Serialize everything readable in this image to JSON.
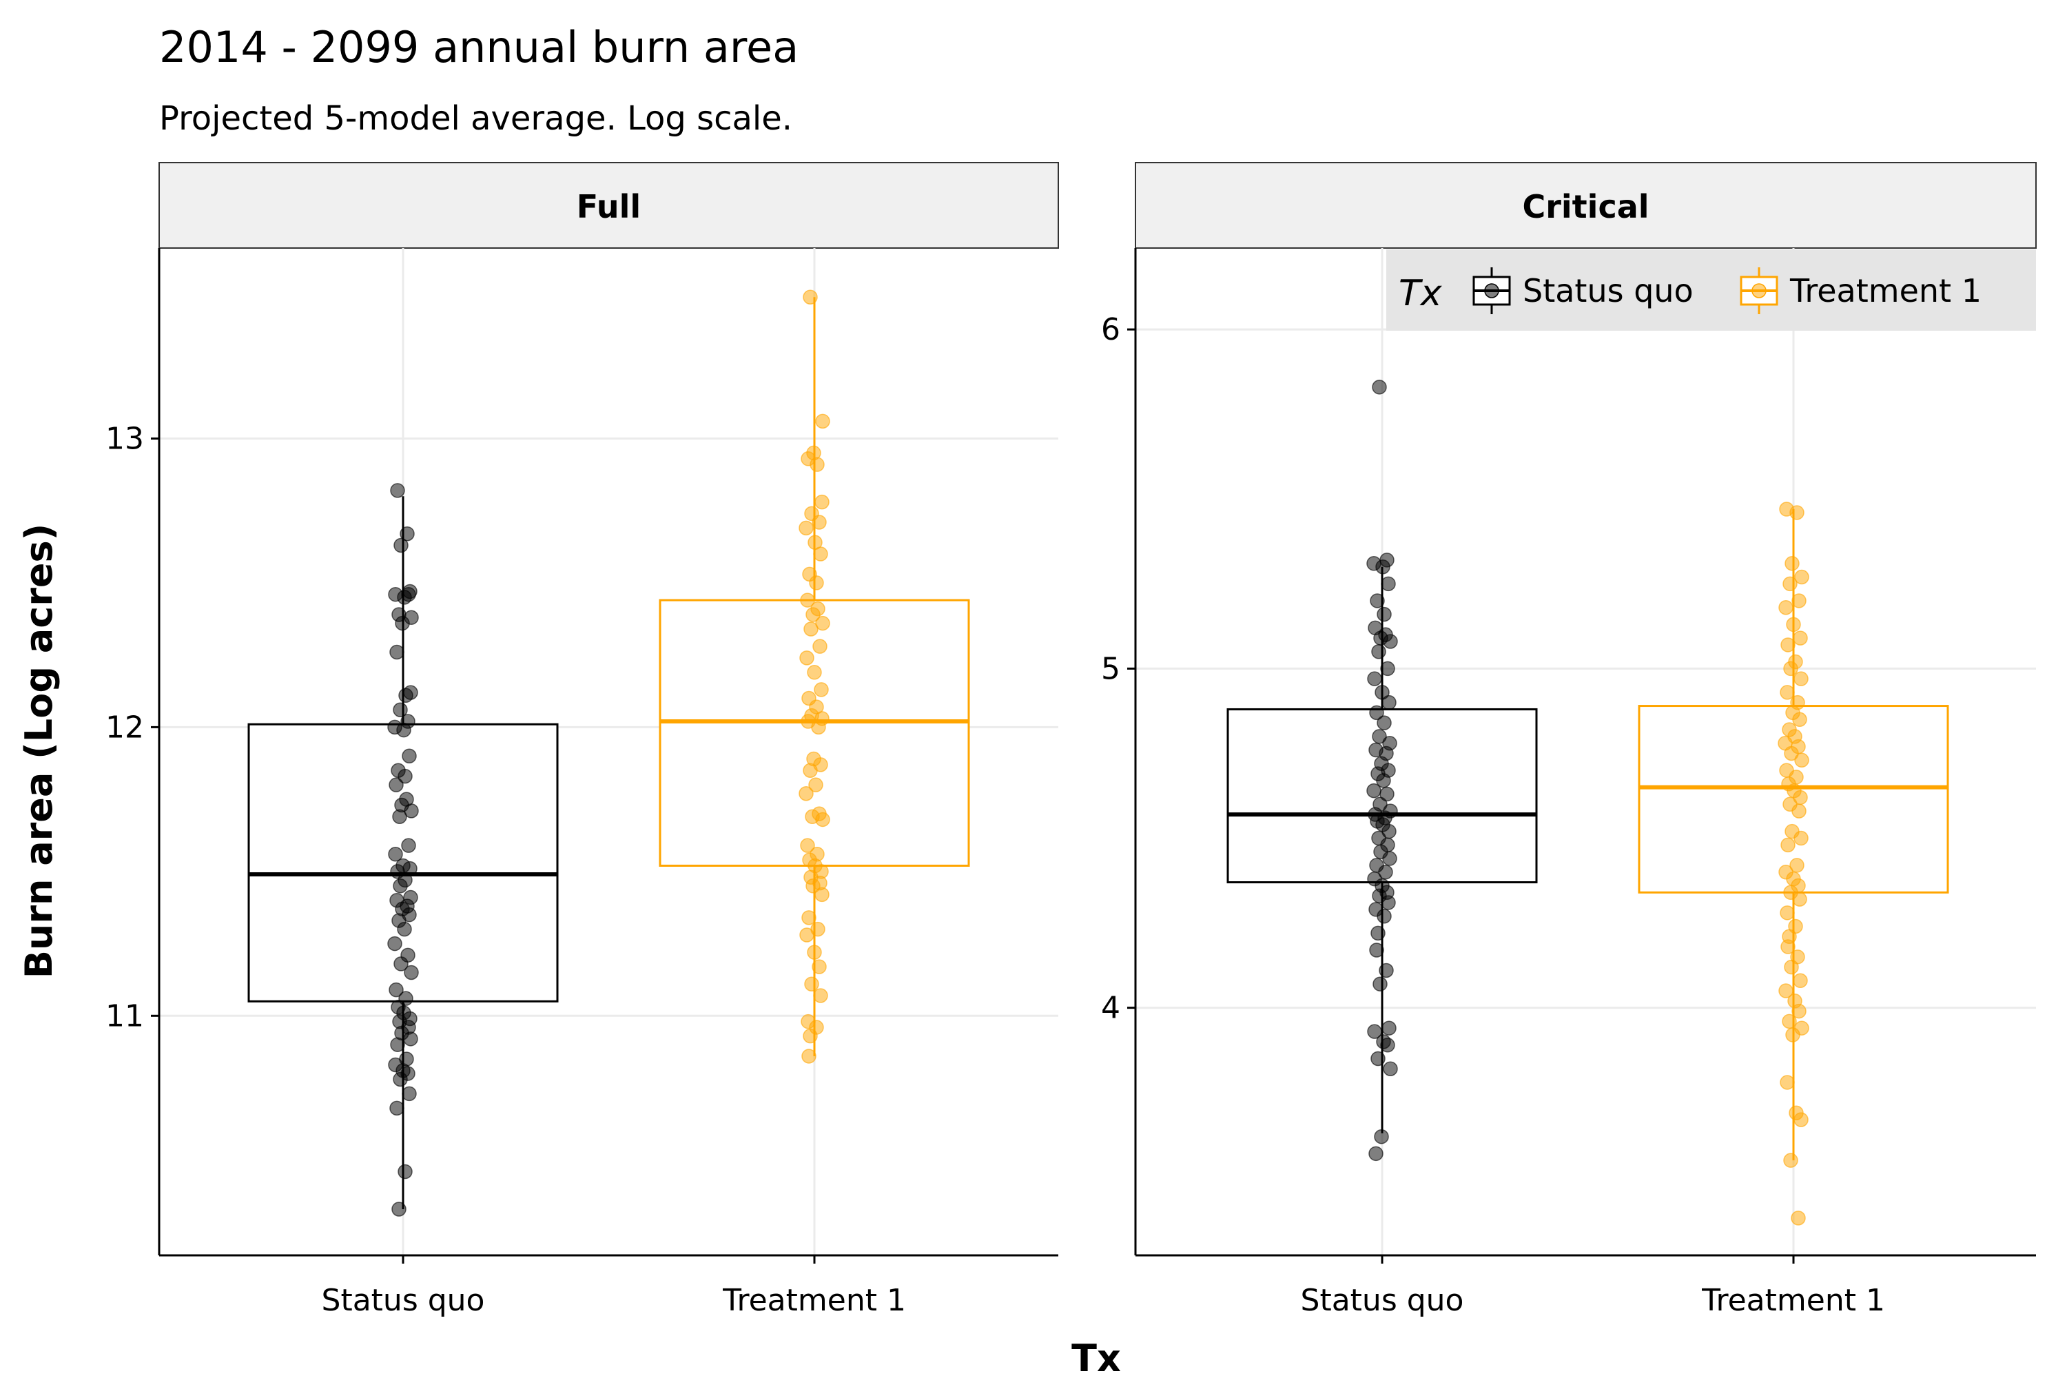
{
  "chart_data": {
    "type": "box",
    "title": "2014 - 2099 annual burn area",
    "subtitle": "Projected 5-model average. Log scale.",
    "xlabel": "Tx",
    "ylabel": "Burn area (Log acres)",
    "legend": {
      "title": "Tx",
      "position": "top-right",
      "entries": [
        "Status quo",
        "Treatment 1"
      ]
    },
    "colors": {
      "Status quo": "#000000",
      "Treatment 1": "#ffa500",
      "strip_fill": "#f0f0f0",
      "grid": "#ebebeb",
      "legend_fill": "#e5e5e5"
    },
    "grid": true,
    "categories": [
      "Status quo",
      "Treatment 1"
    ],
    "panels": [
      {
        "name": "Full",
        "ylim": [
          10.17,
          13.66
        ],
        "yticks": [
          11,
          12,
          13
        ],
        "series": [
          {
            "name": "Status quo",
            "box": {
              "min": 10.33,
              "q1": 11.05,
              "median": 11.49,
              "q3": 12.01,
              "max": 12.8
            },
            "points": [
              12.82,
              12.67,
              12.63,
              12.47,
              12.46,
              12.45,
              12.46,
              12.39,
              12.38,
              12.36,
              12.26,
              12.11,
              12.12,
              12.06,
              12.02,
              12.0,
              11.99,
              11.9,
              11.85,
              11.83,
              11.8,
              11.75,
              11.73,
              11.71,
              11.69,
              11.59,
              11.56,
              11.52,
              11.51,
              11.5,
              11.47,
              11.45,
              11.41,
              11.4,
              11.38,
              11.37,
              11.35,
              11.33,
              11.3,
              11.25,
              11.21,
              11.18,
              11.15,
              11.09,
              11.06,
              11.03,
              11.01,
              10.99,
              10.98,
              10.96,
              10.94,
              10.92,
              10.9,
              10.85,
              10.83,
              10.81,
              10.8,
              10.78,
              10.73,
              10.68,
              10.46,
              10.33
            ]
          },
          {
            "name": "Treatment 1",
            "box": {
              "min": 10.86,
              "q1": 11.52,
              "median": 12.02,
              "q3": 12.44,
              "max": 13.49
            },
            "points": [
              13.49,
              13.06,
              12.95,
              12.93,
              12.91,
              12.78,
              12.74,
              12.71,
              12.69,
              12.64,
              12.6,
              12.53,
              12.5,
              12.44,
              12.41,
              12.39,
              12.36,
              12.34,
              12.28,
              12.24,
              12.19,
              12.13,
              12.1,
              12.07,
              12.04,
              12.03,
              12.02,
              12.0,
              11.89,
              11.87,
              11.85,
              11.8,
              11.77,
              11.7,
              11.69,
              11.68,
              11.59,
              11.56,
              11.54,
              11.52,
              11.5,
              11.48,
              11.46,
              11.45,
              11.42,
              11.34,
              11.3,
              11.28,
              11.22,
              11.17,
              11.11,
              11.07,
              10.98,
              10.96,
              10.93,
              10.86
            ]
          }
        ]
      },
      {
        "name": "Critical",
        "ylim": [
          3.27,
          6.24
        ],
        "yticks": [
          4,
          5,
          6
        ],
        "series": [
          {
            "name": "Status quo",
            "box": {
              "min": 3.63,
              "q1": 4.37,
              "median": 4.57,
              "q3": 4.88,
              "max": 5.3
            },
            "points": [
              5.83,
              5.32,
              5.31,
              5.3,
              5.25,
              5.2,
              5.16,
              5.12,
              5.1,
              5.09,
              5.08,
              5.05,
              5.0,
              4.97,
              4.93,
              4.9,
              4.87,
              4.84,
              4.8,
              4.78,
              4.76,
              4.75,
              4.72,
              4.7,
              4.69,
              4.67,
              4.64,
              4.63,
              4.6,
              4.58,
              4.57,
              4.56,
              4.55,
              4.54,
              4.52,
              4.5,
              4.48,
              4.46,
              4.44,
              4.42,
              4.4,
              4.38,
              4.36,
              4.34,
              4.33,
              4.31,
              4.29,
              4.27,
              4.22,
              4.17,
              4.11,
              4.07,
              3.94,
              3.93,
              3.9,
              3.89,
              3.85,
              3.82,
              3.62,
              3.57
            ]
          },
          {
            "name": "Treatment 1",
            "box": {
              "min": 3.55,
              "q1": 4.34,
              "median": 4.65,
              "q3": 4.89,
              "max": 5.47
            },
            "points": [
              5.47,
              5.46,
              5.31,
              5.27,
              5.25,
              5.2,
              5.18,
              5.13,
              5.09,
              5.07,
              5.02,
              5.0,
              4.97,
              4.93,
              4.9,
              4.87,
              4.85,
              4.82,
              4.8,
              4.78,
              4.77,
              4.75,
              4.73,
              4.7,
              4.68,
              4.66,
              4.64,
              4.62,
              4.6,
              4.58,
              4.52,
              4.5,
              4.48,
              4.42,
              4.4,
              4.38,
              4.36,
              4.34,
              4.32,
              4.28,
              4.24,
              4.21,
              4.18,
              4.15,
              4.12,
              4.08,
              4.05,
              4.02,
              3.99,
              3.96,
              3.94,
              3.92,
              3.78,
              3.69,
              3.67,
              3.55,
              3.38
            ]
          }
        ]
      }
    ]
  }
}
